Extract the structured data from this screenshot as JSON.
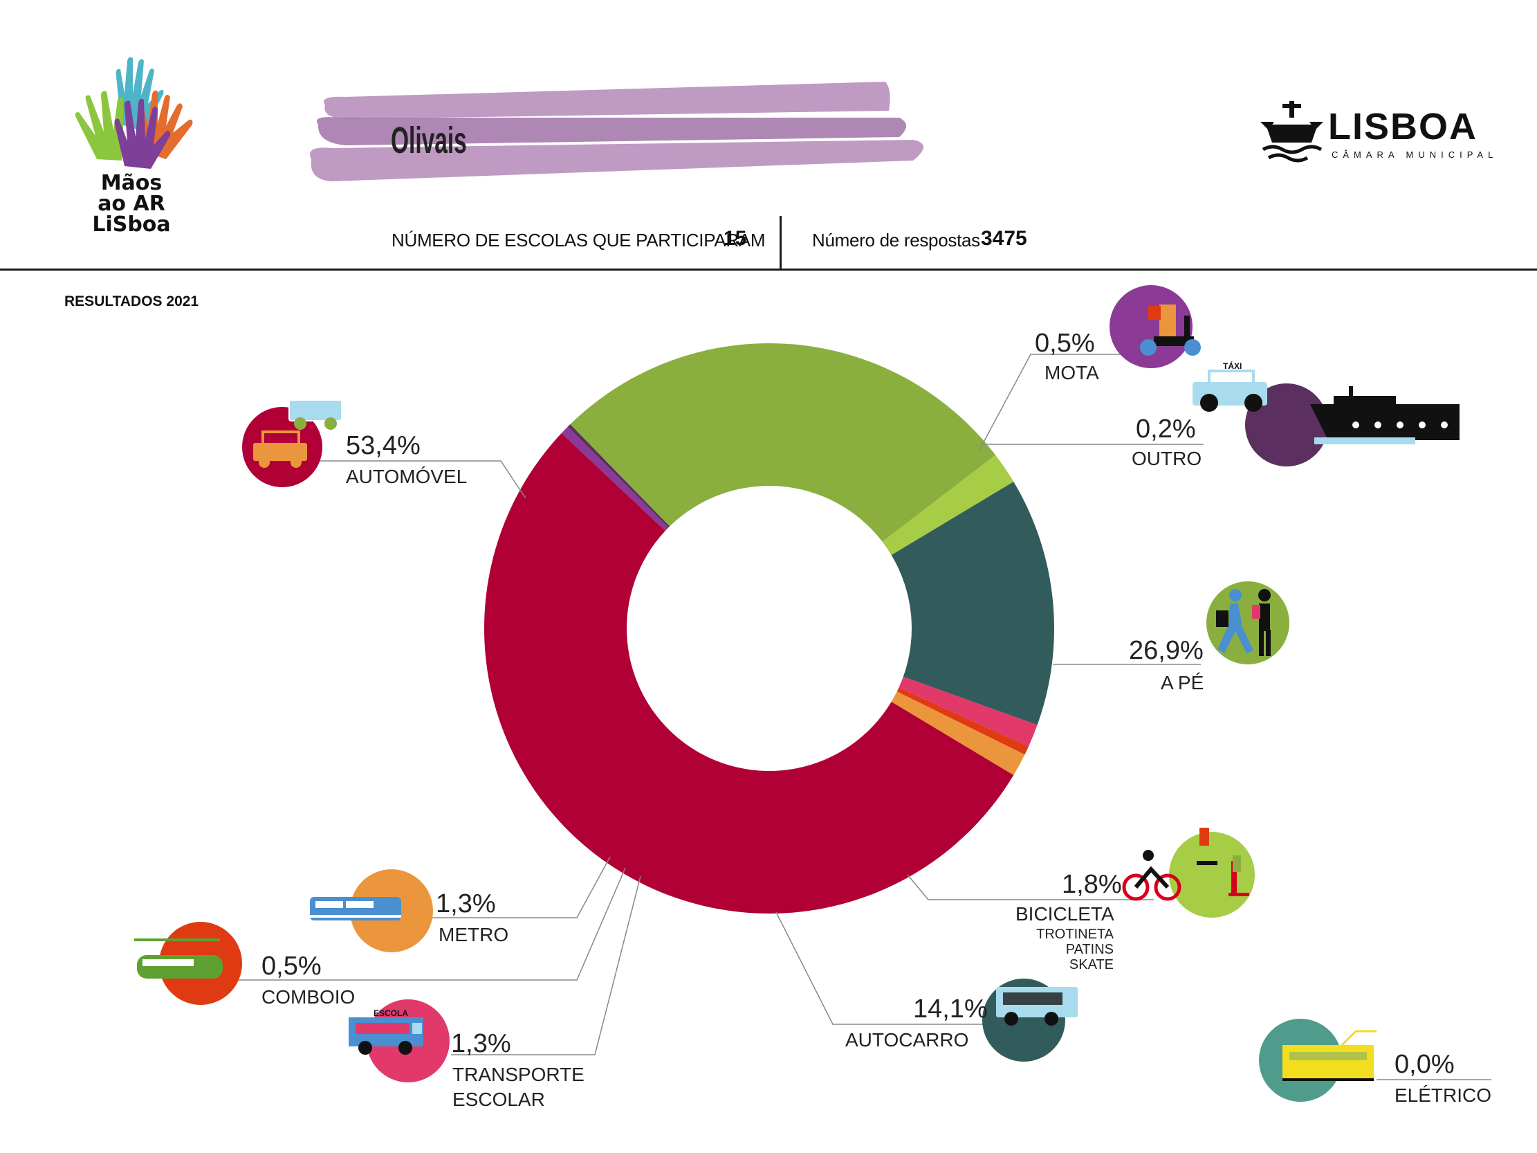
{
  "header": {
    "district": "Olivais",
    "schools_label": "NÚMERO DE ESCOLAS QUE PARTICIPARAM",
    "schools_value": "15",
    "responses_label": "Número de respostas",
    "responses_value": "3475",
    "results_year": "RESULTADOS 2021"
  },
  "logos": {
    "maos_lines": [
      "Mãos",
      "ao AR",
      "LiSboa"
    ],
    "lisboa_word": "LISBOA",
    "lisboa_sub": "CÂMARA MUNICIPAL"
  },
  "chart_data": {
    "type": "pie",
    "donut": true,
    "unit": "%",
    "slices": [
      {
        "label": "MOTA",
        "value": 0.5,
        "display": "0,5%",
        "color": "#8b3a96",
        "icon": "motorbike-icon"
      },
      {
        "label": "OUTRO",
        "value": 0.2,
        "display": "0,2%",
        "color": "#5b3060",
        "icon": "taxi-boat-icon"
      },
      {
        "label": "A PÉ",
        "value": 26.9,
        "display": "26,9%",
        "color": "#8aaf3e",
        "icon": "walking-icon"
      },
      {
        "label": "BICICLETA",
        "sub": [
          "TROTINETA",
          "PATINS",
          "SKATE"
        ],
        "value": 1.8,
        "display": "1,8%",
        "color": "#a7cc45",
        "icon": "bicycle-icon"
      },
      {
        "label": "ELÉTRICO",
        "value": 0.0,
        "display": "0,0%",
        "color": "#4f9c8c",
        "icon": "tram-icon"
      },
      {
        "label": "AUTOCARRO",
        "value": 14.1,
        "display": "14,1%",
        "color": "#325c5b",
        "icon": "bus-icon"
      },
      {
        "label": "TRANSPORTE ESCOLAR",
        "lines": [
          "TRANSPORTE",
          "ESCOLAR"
        ],
        "value": 1.3,
        "display": "1,3%",
        "color": "#e0396a",
        "icon": "school-bus-icon",
        "icon_text": "ESCOLA"
      },
      {
        "label": "COMBOIO",
        "value": 0.5,
        "display": "0,5%",
        "color": "#e03a12",
        "icon": "train-icon"
      },
      {
        "label": "METRO",
        "value": 1.3,
        "display": "1,3%",
        "color": "#eb963c",
        "icon": "metro-icon"
      },
      {
        "label": "AUTOMÓVEL",
        "value": 53.4,
        "display": "53,4%",
        "color": "#b00035",
        "icon": "car-icon"
      }
    ],
    "icon_extra": {
      "taxi_label": "TÁXI"
    }
  }
}
